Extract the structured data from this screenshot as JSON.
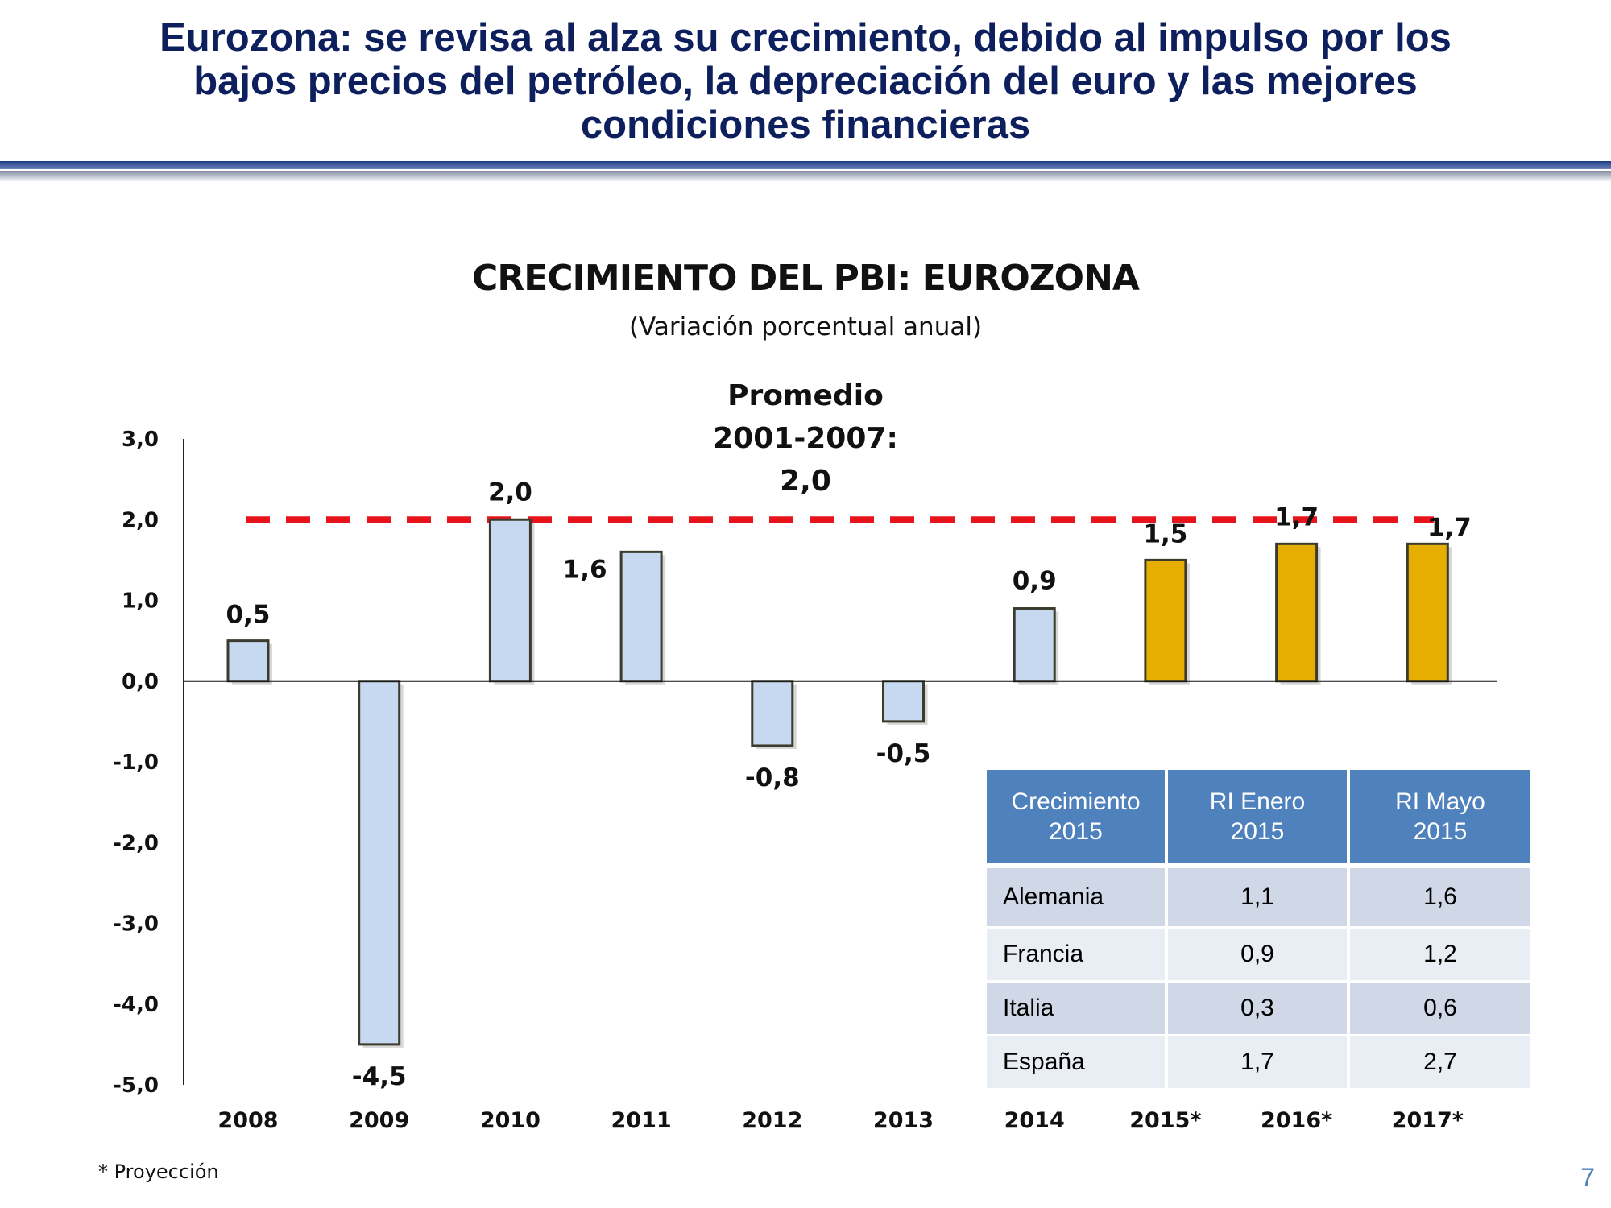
{
  "slide": {
    "title_lines": [
      "Eurozona: se revisa al alza su crecimiento, debido al impulso por los",
      "bajos precios del petróleo, la depreciación del euro y  las mejores",
      "condiciones financieras"
    ],
    "footnote": "* Proyección",
    "page_number": "7"
  },
  "chart_data": {
    "type": "bar",
    "title": "CRECIMIENTO DEL PBI: EUROZONA",
    "subtitle": "(Variación porcentual anual)",
    "categories": [
      "2008",
      "2009",
      "2010",
      "2011",
      "2012",
      "2013",
      "2014",
      "2015*",
      "2016*",
      "2017*"
    ],
    "values": [
      0.5,
      -4.5,
      2.0,
      1.6,
      -0.8,
      -0.5,
      0.9,
      1.5,
      1.7,
      1.7
    ],
    "value_labels": [
      "0,5",
      "-4,5",
      "2,0",
      "1,6",
      "-0,8",
      "-0,5",
      "0,9",
      "1,5",
      "1,7",
      "1,7"
    ],
    "projected": [
      false,
      false,
      false,
      false,
      false,
      false,
      false,
      true,
      true,
      true
    ],
    "ylim": [
      -5,
      3
    ],
    "y_ticks": [
      "3,0",
      "2,0",
      "1,0",
      "0,0",
      "-1,0",
      "-2,0",
      "-3,0",
      "-4,0",
      "-5,0"
    ],
    "y_tick_values": [
      3,
      2,
      1,
      0,
      -1,
      -2,
      -3,
      -4,
      -5
    ],
    "grid": false,
    "reference_line": {
      "value": 2.0,
      "label_lines": [
        "Promedio",
        "2001-2007:",
        "2,0"
      ],
      "color": "#e8141b",
      "style": "dashed"
    },
    "colors": {
      "historical": "#c6d9f1",
      "projected": "#e6ae00",
      "bar_border": "#3b3b2e"
    }
  },
  "table": {
    "headers": [
      [
        "Crecimiento",
        "2015"
      ],
      [
        "RI Enero",
        "2015"
      ],
      [
        "RI Mayo",
        "2015"
      ]
    ],
    "rows": [
      [
        "Alemania",
        "1,1",
        "1,6"
      ],
      [
        "Francia",
        "0,9",
        "1,2"
      ],
      [
        "Italia",
        "0,3",
        "0,6"
      ],
      [
        "España",
        "1,7",
        "2,7"
      ]
    ],
    "colors": {
      "header": "#4f81bd",
      "row_odd": "#d0d8e8",
      "row_even": "#e9edf4"
    }
  }
}
